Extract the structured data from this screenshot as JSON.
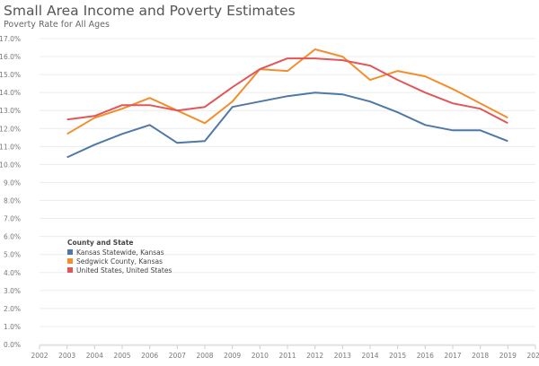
{
  "chart_data": {
    "type": "line",
    "title": "Small Area Income and Poverty Estimates",
    "subtitle": "Poverty Rate for All Ages",
    "x": [
      2003,
      2004,
      2005,
      2006,
      2007,
      2008,
      2009,
      2010,
      2011,
      2012,
      2013,
      2014,
      2015,
      2016,
      2017,
      2018,
      2019
    ],
    "x_ticks": [
      "2002",
      "2003",
      "2004",
      "2005",
      "2006",
      "2007",
      "2008",
      "2009",
      "2010",
      "2011",
      "2012",
      "2013",
      "2014",
      "2015",
      "2016",
      "2017",
      "2018",
      "2019",
      "2020"
    ],
    "xlim": [
      2002,
      2020
    ],
    "ylim": [
      0,
      17
    ],
    "y_ticks": [
      "0.0%",
      "1.0%",
      "2.0%",
      "3.0%",
      "4.0%",
      "5.0%",
      "6.0%",
      "7.0%",
      "8.0%",
      "9.0%",
      "10.0%",
      "11.0%",
      "12.0%",
      "13.0%",
      "14.0%",
      "15.0%",
      "16.0%",
      "17.0%"
    ],
    "grid": "horizontal",
    "legend": {
      "title": "County and State",
      "placement": "lower-left"
    },
    "series": [
      {
        "name": "Kansas Statewide, Kansas",
        "color": "#4e79a7",
        "values": [
          10.4,
          11.1,
          11.7,
          12.2,
          11.2,
          11.3,
          13.2,
          13.5,
          13.8,
          14.0,
          13.9,
          13.5,
          12.9,
          12.2,
          11.9,
          11.9,
          11.3
        ]
      },
      {
        "name": "Sedgwick County, Kansas",
        "color": "#f28e2b",
        "values": [
          11.7,
          12.6,
          13.1,
          13.7,
          13.0,
          12.3,
          13.5,
          15.3,
          15.2,
          16.4,
          16.0,
          14.7,
          15.2,
          14.9,
          14.2,
          13.4,
          12.6
        ]
      },
      {
        "name": "United States, United States",
        "color": "#e15759",
        "values": [
          12.5,
          12.7,
          13.3,
          13.3,
          13.0,
          13.2,
          14.3,
          15.3,
          15.9,
          15.9,
          15.8,
          15.5,
          14.7,
          14.0,
          13.4,
          13.1,
          12.3
        ]
      }
    ]
  }
}
